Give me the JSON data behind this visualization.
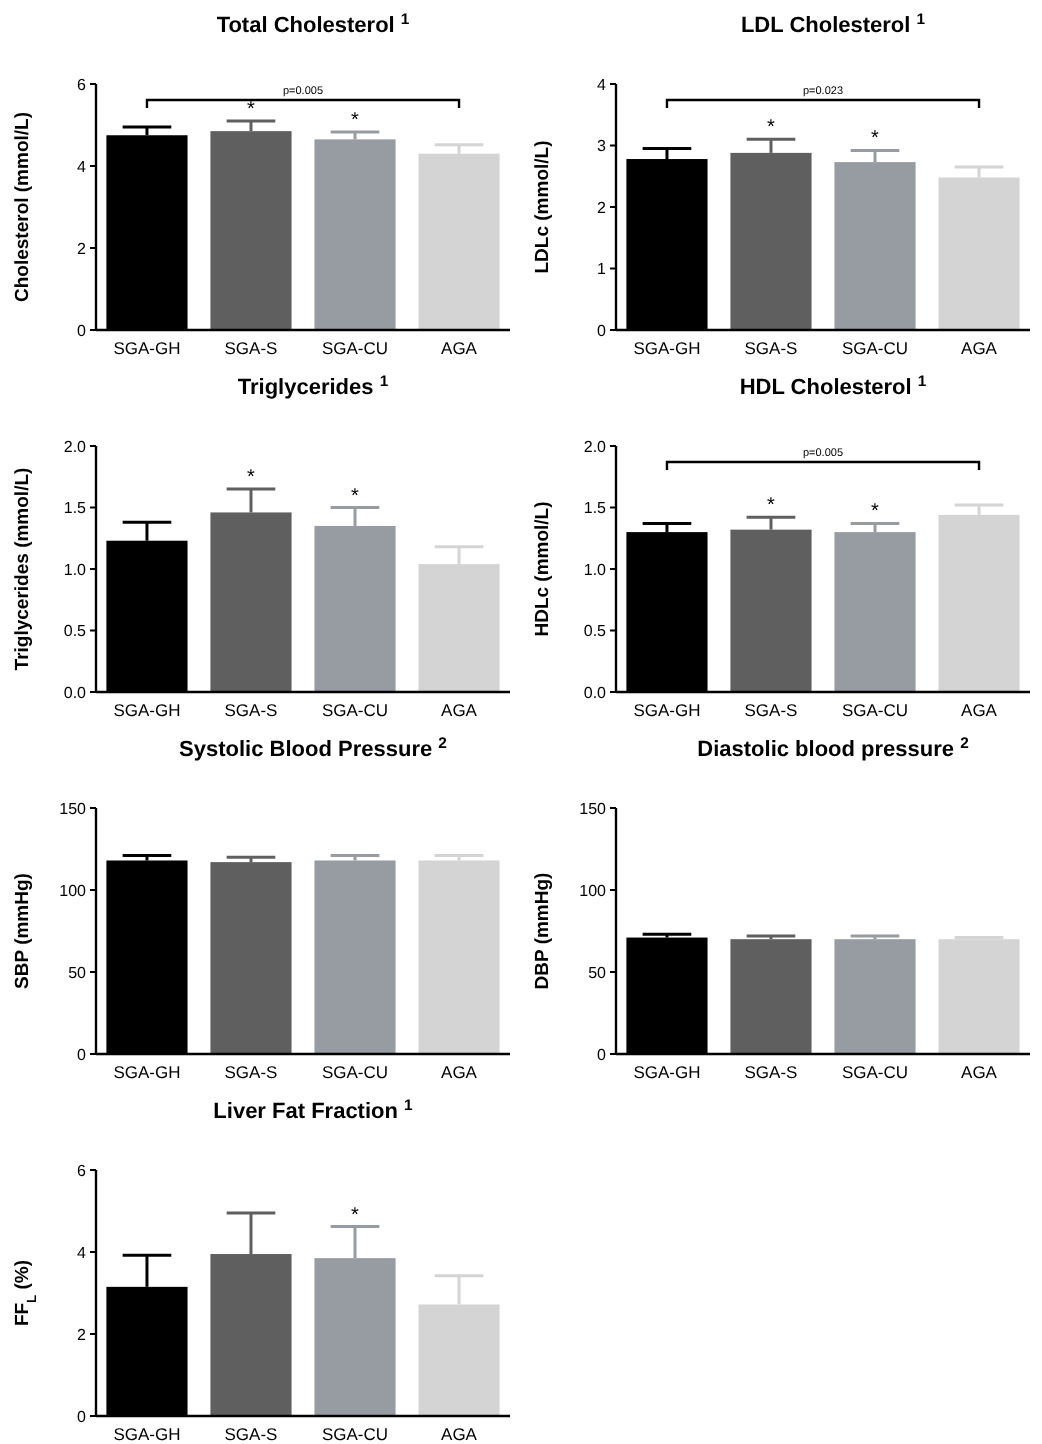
{
  "chart_data": [
    {
      "type": "bar",
      "title": "Total Cholesterol $^{1}$",
      "ylabel": "Cholesterol (mmol/L)",
      "categories": [
        "SGA-GH",
        "SGA-S",
        "SGA-CU",
        "AGA"
      ],
      "values": [
        4.75,
        4.85,
        4.65,
        4.3
      ],
      "errors": [
        [
          4.75,
          4.95
        ],
        [
          4.85,
          5.1
        ],
        [
          4.65,
          4.83
        ],
        [
          4.3,
          4.52
        ]
      ],
      "colors": [
        "#000000",
        "#5f5f5f",
        "#979ca3",
        "#d4d4d4"
      ],
      "ylim": [
        0,
        6
      ],
      "yticks": [
        0,
        2,
        4,
        6
      ],
      "annotations": [
        "p=0.005",
        {
          "text": "*",
          "x": "SGA-S",
          "y": 5.1
        },
        {
          "text": "*",
          "x": "SGA-CU",
          "y": 4.83
        }
      ]
    },
    {
      "type": "bar",
      "title": "LDL Cholesterol $^{1}$",
      "ylabel": "LDLc (mmol/L)",
      "categories": [
        "SGA-GH",
        "SGA-S",
        "SGA-CU",
        "AGA"
      ],
      "values": [
        2.78,
        2.88,
        2.73,
        2.48
      ],
      "errors": [
        [
          2.78,
          2.95
        ],
        [
          2.88,
          3.1
        ],
        [
          2.73,
          2.92
        ],
        [
          2.48,
          2.65
        ]
      ],
      "colors": [
        "#000000",
        "#5f5f5f",
        "#979ca3",
        "#d4d4d4"
      ],
      "ylim": [
        0,
        4
      ],
      "yticks": [
        0,
        1,
        2,
        3,
        4
      ],
      "annotations": [
        "p=0.023",
        {
          "text": "*",
          "x": "SGA-S",
          "y": 3.1
        },
        {
          "text": "*",
          "x": "SGA-CU",
          "y": 2.92
        }
      ]
    },
    {
      "type": "bar",
      "title": "Triglycerides $^{1}$",
      "ylabel": "Triglycerides (mmol/L)",
      "categories": [
        "SGA-GH",
        "SGA-S",
        "SGA-CU",
        "AGA"
      ],
      "values": [
        1.23,
        1.46,
        1.35,
        1.04
      ],
      "errors": [
        [
          1.23,
          1.38
        ],
        [
          1.46,
          1.65
        ],
        [
          1.35,
          1.5
        ],
        [
          1.04,
          1.18
        ]
      ],
      "colors": [
        "#000000",
        "#5f5f5f",
        "#979ca3",
        "#d4d4d4"
      ],
      "ylim": [
        0,
        2
      ],
      "yticks": [
        {
          "value": 0,
          "label": "0.0"
        },
        {
          "value": 0.5,
          "label": "0.5"
        },
        {
          "value": 1,
          "label": "1.0"
        },
        {
          "value": 1.5,
          "label": "1.5"
        },
        {
          "value": 2,
          "label": "2.0"
        }
      ],
      "annotations": [
        {
          "text": "*",
          "x": "SGA-S",
          "y": 1.65
        },
        {
          "text": "*",
          "x": "SGA-CU",
          "y": 1.5
        }
      ]
    },
    {
      "type": "bar",
      "title": "HDL Cholesterol $^{1}$",
      "ylabel": "HDLc (mmol/L)",
      "categories": [
        "SGA-GH",
        "SGA-S",
        "SGA-CU",
        "AGA"
      ],
      "values": [
        1.3,
        1.32,
        1.3,
        1.44
      ],
      "errors": [
        [
          1.3,
          1.37
        ],
        [
          1.32,
          1.42
        ],
        [
          1.3,
          1.37
        ],
        [
          1.44,
          1.52
        ]
      ],
      "colors": [
        "#000000",
        "#5f5f5f",
        "#979ca3",
        "#d4d4d4"
      ],
      "ylim": [
        0,
        2
      ],
      "yticks": [
        {
          "value": 0,
          "label": "0.0"
        },
        {
          "value": 0.5,
          "label": "0.5"
        },
        {
          "value": 1,
          "label": "1.0"
        },
        {
          "value": 1.5,
          "label": "1.5"
        },
        {
          "value": 2,
          "label": "2.0"
        }
      ],
      "annotations": [
        "p=0.005",
        {
          "text": "*",
          "x": "SGA-S",
          "y": 1.42
        },
        {
          "text": "*",
          "x": "SGA-CU",
          "y": 1.37
        }
      ]
    },
    {
      "type": "bar",
      "title": "Systolic Blood Pressure $^{2}$",
      "ylabel": "SBP (mmHg)",
      "categories": [
        "SGA-GH",
        "SGA-S",
        "SGA-CU",
        "AGA"
      ],
      "values": [
        118,
        117,
        118,
        118
      ],
      "errors": [
        [
          118,
          121
        ],
        [
          117,
          120
        ],
        [
          118,
          121
        ],
        [
          118,
          121
        ]
      ],
      "colors": [
        "#000000",
        "#5f5f5f",
        "#979ca3",
        "#d4d4d4"
      ],
      "ylim": [
        0,
        150
      ],
      "yticks": [
        0,
        50,
        100,
        150
      ]
    },
    {
      "type": "bar",
      "title": "Diastolic blood pressure $^{2}$",
      "ylabel": "DBP (mmHg)",
      "categories": [
        "SGA-GH",
        "SGA-S",
        "SGA-CU",
        "AGA"
      ],
      "values": [
        71,
        70,
        70,
        70
      ],
      "errors": [
        [
          71,
          73
        ],
        [
          70,
          72
        ],
        [
          70,
          72
        ],
        [
          70,
          71
        ]
      ],
      "colors": [
        "#000000",
        "#5f5f5f",
        "#979ca3",
        "#d4d4d4"
      ],
      "ylim": [
        0,
        150
      ],
      "yticks": [
        0,
        50,
        100,
        150
      ]
    },
    {
      "type": "bar",
      "title": "Liver Fat Fraction $^{1}$",
      "ylabel": "FF$_{L}$ (%)",
      "categories": [
        "SGA-GH",
        "SGA-S",
        "SGA-CU",
        "AGA"
      ],
      "values": [
        3.15,
        3.95,
        3.85,
        2.72
      ],
      "errors": [
        [
          3.15,
          3.92
        ],
        [
          3.95,
          4.95
        ],
        [
          3.85,
          4.62
        ],
        [
          2.72,
          3.42
        ]
      ],
      "colors": [
        "#000000",
        "#5f5f5f",
        "#979ca3",
        "#d4d4d4"
      ],
      "ylim": [
        0,
        6
      ],
      "yticks": [
        0,
        2,
        4,
        6
      ],
      "annotations": [
        {
          "text": "*",
          "x": "SGA-CU",
          "y": 4.62
        }
      ]
    }
  ]
}
